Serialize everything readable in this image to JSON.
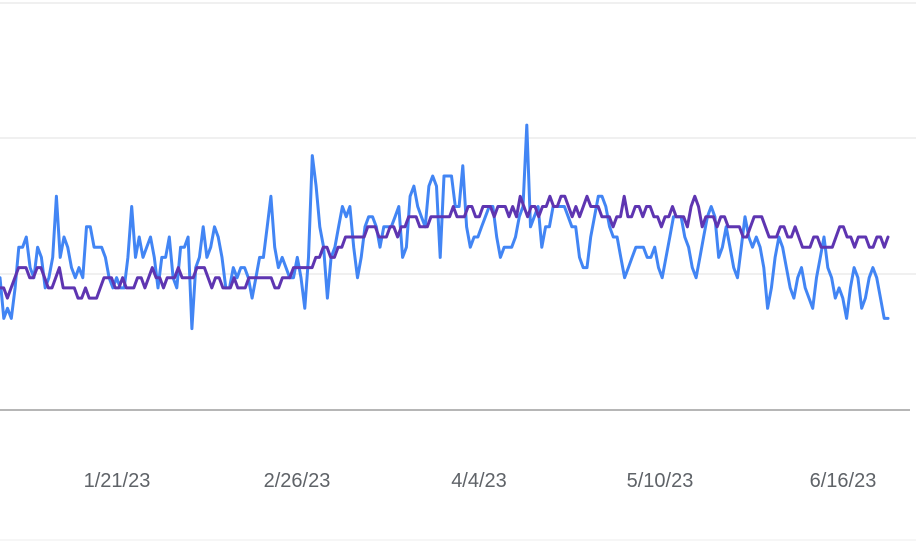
{
  "chart_data": {
    "type": "line",
    "x_tick_labels": [
      "1/21/23",
      "2/26/23",
      "4/4/23",
      "5/10/23",
      "6/16/23"
    ],
    "x_start": "2023-01-01",
    "x_end": "2023-06-21",
    "ylim": [
      0,
      4
    ],
    "grid": true,
    "series": [
      {
        "color": "#4285f4",
        "values": [
          1.3,
          0.9,
          1.0,
          0.9,
          1.2,
          1.6,
          1.6,
          1.7,
          1.4,
          1.3,
          1.6,
          1.5,
          1.2,
          1.3,
          1.5,
          2.1,
          1.5,
          1.7,
          1.6,
          1.4,
          1.3,
          1.4,
          1.3,
          1.8,
          1.8,
          1.6,
          1.6,
          1.6,
          1.5,
          1.3,
          1.2,
          1.3,
          1.2,
          1.2,
          1.5,
          2.0,
          1.5,
          1.7,
          1.5,
          1.6,
          1.7,
          1.5,
          1.2,
          1.5,
          1.5,
          1.7,
          1.3,
          1.2,
          1.6,
          1.6,
          1.7,
          0.8,
          1.4,
          1.5,
          1.8,
          1.5,
          1.6,
          1.8,
          1.7,
          1.5,
          1.2,
          1.2,
          1.4,
          1.3,
          1.4,
          1.4,
          1.3,
          1.1,
          1.3,
          1.5,
          1.5,
          1.8,
          2.1,
          1.6,
          1.4,
          1.5,
          1.4,
          1.3,
          1.3,
          1.5,
          1.3,
          1.0,
          1.5,
          2.5,
          2.2,
          1.8,
          1.6,
          1.1,
          1.5,
          1.6,
          1.8,
          2.0,
          1.9,
          2.0,
          1.6,
          1.3,
          1.5,
          1.8,
          1.9,
          1.9,
          1.8,
          1.6,
          1.8,
          1.8,
          1.8,
          1.9,
          2.0,
          1.5,
          1.6,
          2.1,
          2.2,
          2.0,
          1.9,
          1.8,
          2.2,
          2.3,
          2.2,
          1.5,
          2.3,
          2.3,
          2.3,
          2.0,
          2.0,
          2.4,
          1.8,
          1.6,
          1.7,
          1.7,
          1.8,
          1.9,
          2.0,
          2.0,
          1.7,
          1.5,
          1.6,
          1.6,
          1.6,
          1.7,
          1.9,
          2.0,
          2.8,
          1.8,
          1.9,
          2.0,
          1.6,
          1.8,
          1.8,
          2.0,
          2.0,
          2.0,
          2.0,
          1.9,
          1.8,
          1.8,
          1.5,
          1.4,
          1.4,
          1.7,
          1.9,
          2.1,
          2.1,
          2.0,
          1.8,
          1.7,
          1.7,
          1.5,
          1.3,
          1.4,
          1.5,
          1.6,
          1.6,
          1.6,
          1.5,
          1.5,
          1.6,
          1.4,
          1.3,
          1.5,
          1.7,
          1.9,
          1.9,
          1.9,
          1.7,
          1.6,
          1.4,
          1.3,
          1.5,
          1.7,
          1.9,
          2.0,
          1.9,
          1.5,
          1.6,
          1.8,
          1.6,
          1.4,
          1.3,
          1.6,
          1.9,
          1.7,
          1.6,
          1.7,
          1.6,
          1.4,
          1.0,
          1.2,
          1.5,
          1.7,
          1.6,
          1.4,
          1.2,
          1.1,
          1.3,
          1.4,
          1.2,
          1.1,
          1.0,
          1.3,
          1.5,
          1.7,
          1.4,
          1.3,
          1.1,
          1.2,
          1.1,
          0.9,
          1.2,
          1.4,
          1.3,
          1.0,
          1.1,
          1.3,
          1.4,
          1.3,
          1.1,
          0.9,
          0.9
        ]
      },
      {
        "color": "#5e35b1",
        "values": [
          1.2,
          1.2,
          1.1,
          1.2,
          1.3,
          1.4,
          1.4,
          1.4,
          1.3,
          1.3,
          1.4,
          1.4,
          1.3,
          1.2,
          1.2,
          1.3,
          1.4,
          1.2,
          1.2,
          1.2,
          1.2,
          1.1,
          1.1,
          1.2,
          1.1,
          1.1,
          1.1,
          1.2,
          1.3,
          1.3,
          1.3,
          1.2,
          1.2,
          1.3,
          1.2,
          1.2,
          1.2,
          1.3,
          1.3,
          1.2,
          1.3,
          1.4,
          1.3,
          1.3,
          1.2,
          1.3,
          1.3,
          1.3,
          1.4,
          1.3,
          1.3,
          1.3,
          1.3,
          1.4,
          1.4,
          1.4,
          1.3,
          1.2,
          1.3,
          1.3,
          1.2,
          1.2,
          1.2,
          1.3,
          1.2,
          1.2,
          1.2,
          1.3,
          1.3,
          1.3,
          1.3,
          1.3,
          1.3,
          1.3,
          1.2,
          1.2,
          1.3,
          1.3,
          1.3,
          1.4,
          1.4,
          1.4,
          1.4,
          1.4,
          1.4,
          1.5,
          1.5,
          1.6,
          1.6,
          1.5,
          1.5,
          1.6,
          1.6,
          1.7,
          1.7,
          1.7,
          1.7,
          1.7,
          1.7,
          1.8,
          1.8,
          1.8,
          1.7,
          1.7,
          1.7,
          1.8,
          1.8,
          1.7,
          1.8,
          1.8,
          1.9,
          1.9,
          1.9,
          1.8,
          1.8,
          1.8,
          1.9,
          1.9,
          1.9,
          1.9,
          1.9,
          1.9,
          2.0,
          1.9,
          1.9,
          1.9,
          2.0,
          2.0,
          1.9,
          1.9,
          2.0,
          2.0,
          2.0,
          1.9,
          2.0,
          2.0,
          2.0,
          1.9,
          2.0,
          1.9,
          2.1,
          2.0,
          1.9,
          2.0,
          2.0,
          1.9,
          2.0,
          2.0,
          2.1,
          2.0,
          2.0,
          2.1,
          2.1,
          2.0,
          1.9,
          2.0,
          1.9,
          2.0,
          2.1,
          2.0,
          2.0,
          2.0,
          1.9,
          1.9,
          1.9,
          1.8,
          1.9,
          1.9,
          2.1,
          1.9,
          1.9,
          2.0,
          2.0,
          1.9,
          2.0,
          2.0,
          1.9,
          1.9,
          1.8,
          1.9,
          1.9,
          2.0,
          1.9,
          1.9,
          1.9,
          1.8,
          2.0,
          2.1,
          2.0,
          1.8,
          1.9,
          1.9,
          1.9,
          1.8,
          1.9,
          1.9,
          1.8,
          1.8,
          1.8,
          1.8,
          1.7,
          1.7,
          1.8,
          1.9,
          1.9,
          1.9,
          1.8,
          1.7,
          1.7,
          1.7,
          1.8,
          1.8,
          1.7,
          1.7,
          1.8,
          1.7,
          1.6,
          1.6,
          1.6,
          1.7,
          1.7,
          1.6,
          1.6,
          1.6,
          1.6,
          1.7,
          1.8,
          1.8,
          1.7,
          1.7,
          1.6,
          1.7,
          1.7,
          1.7,
          1.6,
          1.6,
          1.7,
          1.7,
          1.6,
          1.7
        ]
      }
    ]
  }
}
